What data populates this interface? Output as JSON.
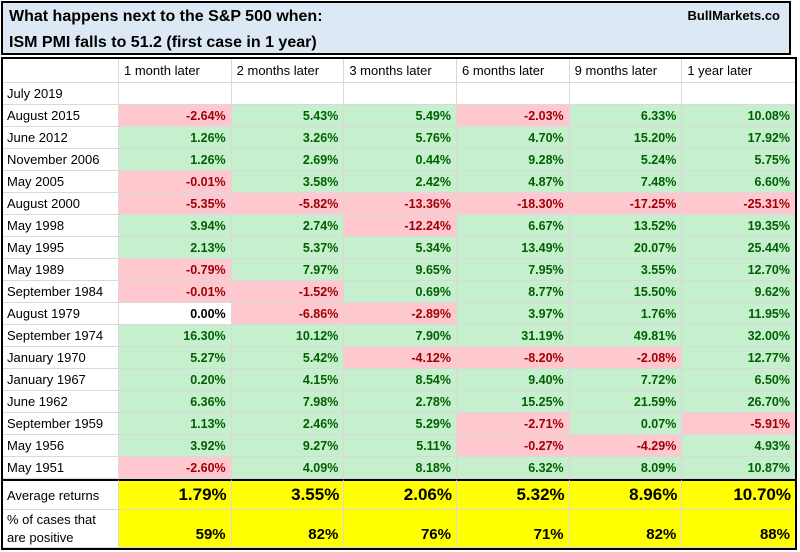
{
  "title": {
    "line1": "What happens next to the S&P 500 when:",
    "line2": "ISM PMI falls to 51.2 (first case in 1 year)",
    "brand": "BullMarkets.co"
  },
  "colors": {
    "title_bg": "#dce9f5",
    "positive_bg": "#c6efce",
    "positive_text": "#006100",
    "negative_bg": "#ffc7ce",
    "negative_text": "#9c0006",
    "summary_bg": "#ffff00"
  },
  "chart_data": {
    "type": "table",
    "title": "What happens next to the S&P 500 when: ISM PMI falls to 51.2 (first case in 1 year)",
    "columns": [
      "1 month later",
      "2 months later",
      "3 months later",
      "6 months later",
      "9 months later",
      "1 year later"
    ],
    "rows": [
      {
        "label": "July 2019",
        "values": [
          "",
          "",
          "",
          "",
          "",
          ""
        ]
      },
      {
        "label": "August 2015",
        "values": [
          "-2.64%",
          "5.43%",
          "5.49%",
          "-2.03%",
          "6.33%",
          "10.08%"
        ]
      },
      {
        "label": "June 2012",
        "values": [
          "1.26%",
          "3.26%",
          "5.76%",
          "4.70%",
          "15.20%",
          "17.92%"
        ]
      },
      {
        "label": "November 2006",
        "values": [
          "1.26%",
          "2.69%",
          "0.44%",
          "9.28%",
          "5.24%",
          "5.75%"
        ]
      },
      {
        "label": "May 2005",
        "values": [
          "-0.01%",
          "3.58%",
          "2.42%",
          "4.87%",
          "7.48%",
          "6.60%"
        ]
      },
      {
        "label": "August 2000",
        "values": [
          "-5.35%",
          "-5.82%",
          "-13.36%",
          "-18.30%",
          "-17.25%",
          "-25.31%"
        ]
      },
      {
        "label": "May 1998",
        "values": [
          "3.94%",
          "2.74%",
          "-12.24%",
          "6.67%",
          "13.52%",
          "19.35%"
        ]
      },
      {
        "label": "May 1995",
        "values": [
          "2.13%",
          "5.37%",
          "5.34%",
          "13.49%",
          "20.07%",
          "25.44%"
        ]
      },
      {
        "label": "May 1989",
        "values": [
          "-0.79%",
          "7.97%",
          "9.65%",
          "7.95%",
          "3.55%",
          "12.70%"
        ]
      },
      {
        "label": "September 1984",
        "values": [
          "-0.01%",
          "-1.52%",
          "0.69%",
          "8.77%",
          "15.50%",
          "9.62%"
        ]
      },
      {
        "label": "August 1979",
        "values": [
          "0.00%",
          "-6.86%",
          "-2.89%",
          "3.97%",
          "1.76%",
          "11.95%"
        ]
      },
      {
        "label": "September 1974",
        "values": [
          "16.30%",
          "10.12%",
          "7.90%",
          "31.19%",
          "49.81%",
          "32.00%"
        ]
      },
      {
        "label": "January 1970",
        "values": [
          "5.27%",
          "5.42%",
          "-4.12%",
          "-8.20%",
          "-2.08%",
          "12.77%"
        ]
      },
      {
        "label": "January 1967",
        "values": [
          "0.20%",
          "4.15%",
          "8.54%",
          "9.40%",
          "7.72%",
          "6.50%"
        ]
      },
      {
        "label": "June 1962",
        "values": [
          "6.36%",
          "7.98%",
          "2.78%",
          "15.25%",
          "21.59%",
          "26.70%"
        ]
      },
      {
        "label": "September 1959",
        "values": [
          "1.13%",
          "2.46%",
          "5.29%",
          "-2.71%",
          "0.07%",
          "-5.91%"
        ]
      },
      {
        "label": "May 1956",
        "values": [
          "3.92%",
          "9.27%",
          "5.11%",
          "-0.27%",
          "-4.29%",
          "4.93%"
        ]
      },
      {
        "label": "May 1951",
        "values": [
          "-2.60%",
          "4.09%",
          "8.18%",
          "6.32%",
          "8.09%",
          "10.87%"
        ]
      }
    ],
    "summary": {
      "average": {
        "label": "Average returns",
        "values": [
          "1.79%",
          "3.55%",
          "2.06%",
          "5.32%",
          "8.96%",
          "10.70%"
        ]
      },
      "percent_positive": {
        "label_line1": "% of cases that",
        "label_line2": "are positive",
        "values": [
          "59%",
          "82%",
          "76%",
          "71%",
          "82%",
          "88%"
        ]
      }
    }
  }
}
